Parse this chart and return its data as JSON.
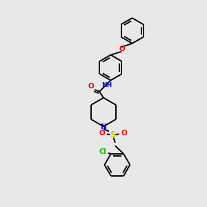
{
  "background_color": "#e8e8e8",
  "bond_color": "#000000",
  "atom_colors": {
    "O": "#ff0000",
    "N_amide": "#0000cc",
    "N_pip": "#0000cc",
    "S": "#cccc00",
    "Cl": "#00bb00",
    "H": "#66aaaa"
  },
  "figsize": [
    3.0,
    3.0
  ],
  "dpi": 100
}
